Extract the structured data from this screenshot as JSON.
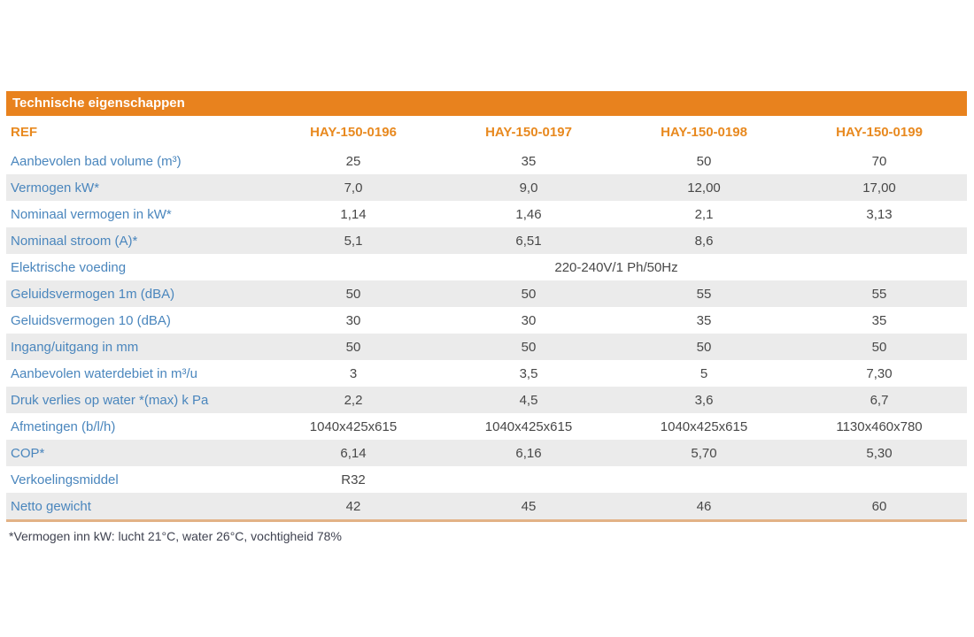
{
  "table": {
    "title": "Technische eigenschappen",
    "ref_label": "REF",
    "columns": [
      "HAY-150-0196",
      "HAY-150-0197",
      "HAY-150-0198",
      "HAY-150-0199"
    ],
    "rows": [
      {
        "label": "Aanbevolen bad volume (m³)",
        "values": [
          "25",
          "35",
          "50",
          "70"
        ]
      },
      {
        "label": "Vermogen kW*",
        "values": [
          "7,0",
          "9,0",
          "12,00",
          "17,00"
        ]
      },
      {
        "label": "Nominaal vermogen in kW*",
        "values": [
          "1,14",
          "1,46",
          "2,1",
          "3,13"
        ]
      },
      {
        "label": "Nominaal stroom (A)*",
        "values": [
          "5,1",
          "6,51",
          "8,6",
          ""
        ]
      },
      {
        "label": "Elektrische voeding",
        "merged_value": "220-240V/1 Ph/50Hz"
      },
      {
        "label": "Geluidsvermogen 1m (dBA)",
        "values": [
          "50",
          "50",
          "55",
          "55"
        ]
      },
      {
        "label": "Geluidsvermogen 10 (dBA)",
        "values": [
          "30",
          "30",
          "35",
          "35"
        ]
      },
      {
        "label": "Ingang/uitgang in mm",
        "values": [
          "50",
          "50",
          "50",
          "50"
        ]
      },
      {
        "label": "Aanbevolen waterdebiet in m³/u",
        "values": [
          "3",
          "3,5",
          "5",
          "7,30"
        ]
      },
      {
        "label": "Druk verlies op water *(max) k Pa",
        "values": [
          "2,2",
          "4,5",
          "3,6",
          "6,7"
        ]
      },
      {
        "label": "Afmetingen (b/l/h)",
        "values": [
          "1040x425x615",
          "1040x425x615",
          "1040x425x615",
          "1130x460x780"
        ]
      },
      {
        "label": "COP*",
        "values": [
          "6,14",
          "6,16",
          "5,70",
          "5,30"
        ]
      },
      {
        "label": "Verkoelingsmiddel",
        "values": [
          "R32",
          "",
          "",
          ""
        ]
      },
      {
        "label": "Netto gewicht",
        "values": [
          "42",
          "45",
          "46",
          "60"
        ]
      }
    ],
    "footnote": "*Vermogen inn kW: lucht 21°C, water 26°C, vochtigheid 78%"
  },
  "colors": {
    "header_background": "#e8821e",
    "header_text": "#ffffff",
    "column_header_text": "#e8891f",
    "row_label_text": "#4a86bd",
    "value_text": "#484848",
    "shaded_row_background": "#ebebeb",
    "bottom_border": "#e2b286"
  }
}
